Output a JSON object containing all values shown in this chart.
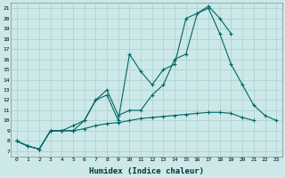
{
  "xlabel": "Humidex (Indice chaleur)",
  "bg_color": "#cce8e8",
  "grid_color": "#aacfcf",
  "line_color": "#006666",
  "xlim": [
    -0.5,
    23.5
  ],
  "ylim": [
    6.5,
    21.5
  ],
  "yticks": [
    7,
    8,
    9,
    10,
    11,
    12,
    13,
    14,
    15,
    16,
    17,
    18,
    19,
    20,
    21
  ],
  "xticks": [
    0,
    1,
    2,
    3,
    4,
    5,
    6,
    7,
    8,
    9,
    10,
    11,
    12,
    13,
    14,
    15,
    16,
    17,
    18,
    19,
    20,
    21,
    22,
    23
  ],
  "line1_x": [
    0,
    1,
    2,
    3,
    4,
    5,
    6,
    7,
    8,
    9,
    10,
    11,
    12,
    13,
    14,
    15,
    16,
    17,
    18,
    19,
    20,
    21
  ],
  "line1_y": [
    8,
    7.5,
    7.2,
    9.0,
    9.0,
    9.0,
    9.2,
    9.5,
    9.7,
    9.8,
    10.0,
    10.2,
    10.3,
    10.4,
    10.5,
    10.6,
    10.7,
    10.8,
    10.8,
    10.7,
    10.3,
    10.0
  ],
  "line2_x": [
    0,
    1,
    2,
    3,
    4,
    5,
    6,
    7,
    8,
    9,
    10,
    11,
    12,
    13,
    14,
    15,
    16,
    17,
    18,
    19
  ],
  "line2_y": [
    8,
    7.5,
    7.2,
    9.0,
    9.0,
    9.5,
    10.0,
    12.0,
    12.5,
    10.0,
    16.5,
    14.8,
    13.5,
    15.0,
    15.5,
    20.0,
    20.5,
    21.2,
    20.0,
    18.5
  ],
  "line3_x": [
    0,
    1,
    2,
    3,
    4,
    5,
    6,
    7,
    8,
    9,
    10,
    11,
    12,
    13,
    14,
    15,
    16,
    17,
    18,
    19,
    20,
    21,
    22,
    23
  ],
  "line3_y": [
    8,
    7.5,
    7.2,
    9.0,
    9.0,
    9.0,
    10.0,
    12.0,
    13.0,
    10.5,
    11.0,
    11.0,
    12.5,
    13.5,
    16.0,
    16.5,
    20.5,
    21.0,
    18.5,
    15.5,
    13.5,
    11.5,
    10.5,
    10.0
  ]
}
